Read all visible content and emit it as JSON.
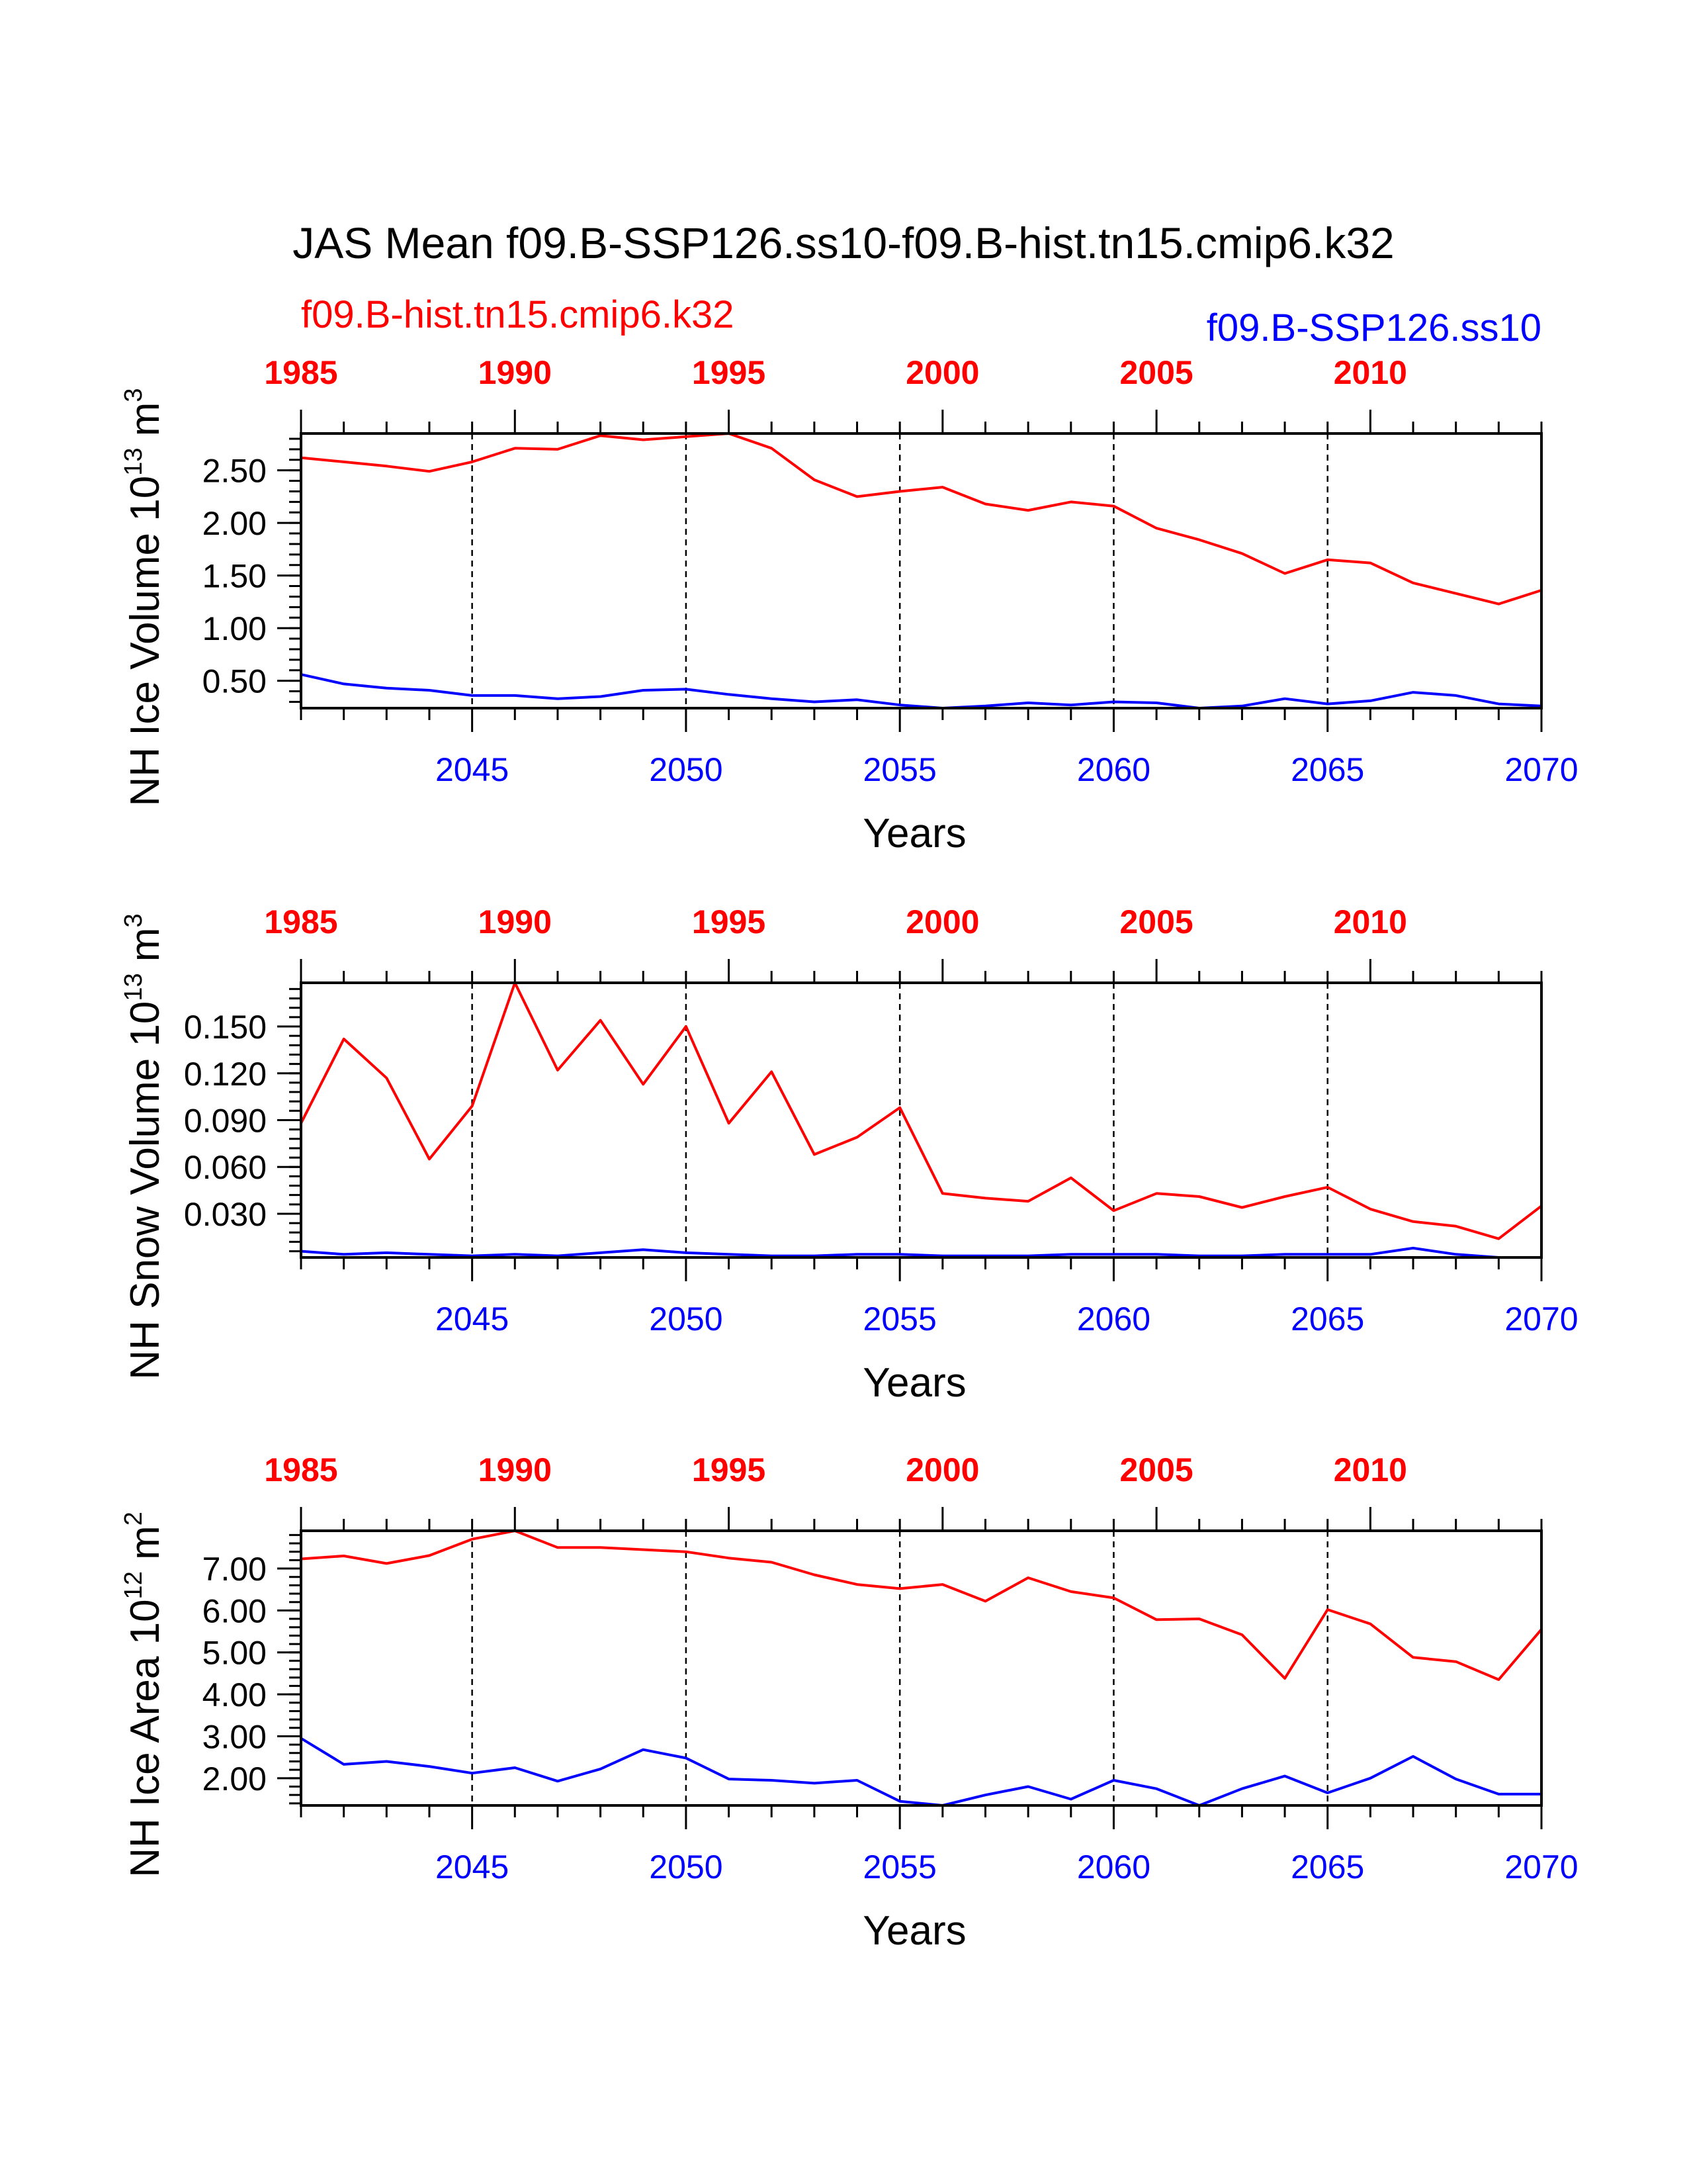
{
  "title": "JAS Mean f09.B-SSP126.ss10-f09.B-hist.tn15.cmip6.k32",
  "legend": {
    "left": {
      "label": "f09.B-hist.tn15.cmip6.k32",
      "color": "#ff0000"
    },
    "right": {
      "label": "f09.B-SSP126.ss10",
      "color": "#0000ff"
    }
  },
  "colors": {
    "hist": "#ff0000",
    "ssp": "#0000ff",
    "axis": "#000000"
  },
  "chart_data": [
    {
      "type": "line",
      "ylabel_main": "NH Ice Volume 10",
      "ylabel_exp": "13",
      "ylabel_unit": " m",
      "ylabel_unit_exp": "3",
      "xlabel": "Years",
      "ylim": [
        0.24,
        2.85
      ],
      "yticks": [
        0.5,
        1.0,
        1.5,
        2.0,
        2.5
      ],
      "ytick_labels": [
        "0.50",
        "1.00",
        "1.50",
        "2.00",
        "2.50"
      ],
      "ytick_minor": 0.1,
      "x_bottom_labels": [
        "2045",
        "2050",
        "2055",
        "2060",
        "2065",
        "2070"
      ],
      "x_top_labels": [
        "1985",
        "1990",
        "1995",
        "2000",
        "2005",
        "2010"
      ],
      "series": [
        {
          "name": "f09.B-hist.tn15.cmip6.k32",
          "color": "#ff0000",
          "x": [
            2041,
            2042,
            2043,
            2044,
            2045,
            2046,
            2047,
            2048,
            2049,
            2050,
            2051,
            2052,
            2053,
            2054,
            2055,
            2056,
            2057,
            2058,
            2059,
            2060,
            2061,
            2062,
            2063,
            2064,
            2065,
            2066,
            2067,
            2068,
            2069,
            2070
          ],
          "values": [
            2.62,
            2.58,
            2.54,
            2.49,
            2.58,
            2.71,
            2.7,
            2.83,
            2.79,
            2.82,
            2.85,
            2.71,
            2.41,
            2.25,
            2.3,
            2.34,
            2.18,
            2.12,
            2.2,
            2.16,
            1.95,
            1.84,
            1.71,
            1.52,
            1.65,
            1.62,
            1.43,
            1.33,
            1.23,
            1.36
          ]
        },
        {
          "name": "f09.B-SSP126.ss10",
          "color": "#0000ff",
          "x": [
            2041,
            2042,
            2043,
            2044,
            2045,
            2046,
            2047,
            2048,
            2049,
            2050,
            2051,
            2052,
            2053,
            2054,
            2055,
            2056,
            2057,
            2058,
            2059,
            2060,
            2061,
            2062,
            2063,
            2064,
            2065,
            2066,
            2067,
            2068,
            2069,
            2070
          ],
          "values": [
            0.56,
            0.47,
            0.43,
            0.41,
            0.36,
            0.36,
            0.33,
            0.35,
            0.41,
            0.42,
            0.37,
            0.33,
            0.3,
            0.32,
            0.27,
            0.24,
            0.26,
            0.29,
            0.27,
            0.3,
            0.29,
            0.24,
            0.26,
            0.33,
            0.28,
            0.31,
            0.39,
            0.36,
            0.28,
            0.26
          ]
        }
      ]
    },
    {
      "type": "line",
      "ylabel_main": "NH Snow Volume 10",
      "ylabel_exp": "13",
      "ylabel_unit": " m",
      "ylabel_unit_exp": "3",
      "xlabel": "Years",
      "ylim": [
        0.002,
        0.178
      ],
      "yticks": [
        0.03,
        0.06,
        0.09,
        0.12,
        0.15
      ],
      "ytick_labels": [
        "0.030",
        "0.060",
        "0.090",
        "0.120",
        "0.150"
      ],
      "ytick_minor": 0.006,
      "x_bottom_labels": [
        "2045",
        "2050",
        "2055",
        "2060",
        "2065",
        "2070"
      ],
      "x_top_labels": [
        "1985",
        "1990",
        "1995",
        "2000",
        "2005",
        "2010"
      ],
      "series": [
        {
          "name": "f09.B-hist.tn15.cmip6.k32",
          "color": "#ff0000",
          "x": [
            2041,
            2042,
            2043,
            2044,
            2045,
            2046,
            2047,
            2048,
            2049,
            2050,
            2051,
            2052,
            2053,
            2054,
            2055,
            2056,
            2057,
            2058,
            2059,
            2060,
            2061,
            2062,
            2063,
            2064,
            2065,
            2066,
            2067,
            2068,
            2069,
            2070
          ],
          "values": [
            0.088,
            0.142,
            0.117,
            0.065,
            0.099,
            0.178,
            0.122,
            0.154,
            0.113,
            0.15,
            0.088,
            0.121,
            0.068,
            0.079,
            0.098,
            0.043,
            0.04,
            0.038,
            0.053,
            0.032,
            0.043,
            0.041,
            0.034,
            0.041,
            0.047,
            0.033,
            0.025,
            0.022,
            0.014,
            0.035
          ]
        },
        {
          "name": "f09.B-SSP126.ss10",
          "color": "#0000ff",
          "x": [
            2041,
            2042,
            2043,
            2044,
            2045,
            2046,
            2047,
            2048,
            2049,
            2050,
            2051,
            2052,
            2053,
            2054,
            2055,
            2056,
            2057,
            2058,
            2059,
            2060,
            2061,
            2062,
            2063,
            2064,
            2065,
            2066,
            2067,
            2068,
            2069,
            2070
          ],
          "values": [
            0.006,
            0.004,
            0.005,
            0.004,
            0.003,
            0.004,
            0.003,
            0.005,
            0.007,
            0.005,
            0.004,
            0.003,
            0.003,
            0.004,
            0.004,
            0.003,
            0.003,
            0.003,
            0.004,
            0.004,
            0.004,
            0.003,
            0.003,
            0.004,
            0.004,
            0.004,
            0.008,
            0.004,
            0.002,
            0.002
          ]
        }
      ]
    },
    {
      "type": "line",
      "ylabel_main": "NH Ice Area 10",
      "ylabel_exp": "12",
      "ylabel_unit": " m",
      "ylabel_unit_exp": "2",
      "xlabel": "Years",
      "ylim": [
        1.35,
        7.9
      ],
      "yticks": [
        2.0,
        3.0,
        4.0,
        5.0,
        6.0,
        7.0
      ],
      "ytick_labels": [
        "2.00",
        "3.00",
        "4.00",
        "5.00",
        "6.00",
        "7.00"
      ],
      "ytick_minor": 0.2,
      "x_bottom_labels": [
        "2045",
        "2050",
        "2055",
        "2060",
        "2065",
        "2070"
      ],
      "x_top_labels": [
        "1985",
        "1990",
        "1995",
        "2000",
        "2005",
        "2010"
      ],
      "series": [
        {
          "name": "f09.B-hist.tn15.cmip6.k32",
          "color": "#ff0000",
          "x": [
            2041,
            2042,
            2043,
            2044,
            2045,
            2046,
            2047,
            2048,
            2049,
            2050,
            2051,
            2052,
            2053,
            2054,
            2055,
            2056,
            2057,
            2058,
            2059,
            2060,
            2061,
            2062,
            2063,
            2064,
            2065,
            2066,
            2067,
            2068,
            2069,
            2070
          ],
          "values": [
            7.23,
            7.3,
            7.12,
            7.31,
            7.7,
            7.9,
            7.5,
            7.5,
            7.45,
            7.4,
            7.25,
            7.15,
            6.85,
            6.62,
            6.52,
            6.62,
            6.22,
            6.78,
            6.45,
            6.3,
            5.78,
            5.8,
            5.42,
            4.38,
            6.02,
            5.68,
            4.88,
            4.78,
            4.35,
            5.55
          ]
        },
        {
          "name": "f09.B-SSP126.ss10",
          "color": "#0000ff",
          "x": [
            2041,
            2042,
            2043,
            2044,
            2045,
            2046,
            2047,
            2048,
            2049,
            2050,
            2051,
            2052,
            2053,
            2054,
            2055,
            2056,
            2057,
            2058,
            2059,
            2060,
            2061,
            2062,
            2063,
            2064,
            2065,
            2066,
            2067,
            2068,
            2069,
            2070
          ],
          "values": [
            2.95,
            2.33,
            2.4,
            2.28,
            2.12,
            2.25,
            1.93,
            2.22,
            2.68,
            2.48,
            1.98,
            1.95,
            1.88,
            1.95,
            1.45,
            1.35,
            1.6,
            1.8,
            1.5,
            1.95,
            1.75,
            1.35,
            1.75,
            2.05,
            1.65,
            2.0,
            2.52,
            1.98,
            1.62,
            1.62
          ]
        }
      ]
    }
  ]
}
